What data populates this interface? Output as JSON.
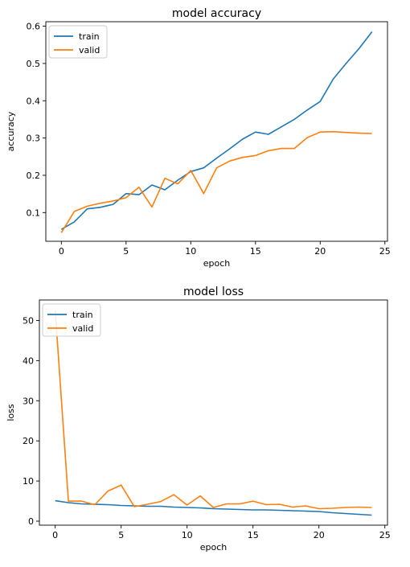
{
  "colors": {
    "train": "#1f77b4",
    "valid": "#ff7f0e"
  },
  "chart_data": [
    {
      "type": "line",
      "title": "model accuracy",
      "xlabel": "epoch",
      "ylabel": "accuracy",
      "xlim": [
        -1.2,
        25.2
      ],
      "ylim": [
        0.023,
        0.612
      ],
      "xticks": [
        0,
        5,
        10,
        15,
        20,
        25
      ],
      "yticks": [
        0.1,
        0.2,
        0.3,
        0.4,
        0.5,
        0.6
      ],
      "ytick_labels": [
        "0.1",
        "0.2",
        "0.3",
        "0.4",
        "0.5",
        "0.6"
      ],
      "legend": "upper left",
      "x": [
        0,
        1,
        2,
        3,
        4,
        5,
        6,
        7,
        8,
        9,
        10,
        11,
        12,
        13,
        14,
        15,
        16,
        17,
        18,
        19,
        20,
        21,
        22,
        23,
        24
      ],
      "series": [
        {
          "name": "train",
          "values": [
            0.055,
            0.075,
            0.11,
            0.114,
            0.122,
            0.151,
            0.148,
            0.174,
            0.161,
            0.187,
            0.21,
            0.22,
            0.246,
            0.271,
            0.297,
            0.316,
            0.31,
            0.33,
            0.35,
            0.375,
            0.398,
            0.458,
            0.5,
            0.54,
            0.585
          ]
        },
        {
          "name": "valid",
          "values": [
            0.046,
            0.103,
            0.117,
            0.125,
            0.131,
            0.14,
            0.168,
            0.115,
            0.192,
            0.177,
            0.213,
            0.151,
            0.22,
            0.238,
            0.248,
            0.253,
            0.266,
            0.272,
            0.272,
            0.301,
            0.316,
            0.317,
            0.315,
            0.313,
            0.312
          ]
        }
      ]
    },
    {
      "type": "line",
      "title": "model loss",
      "xlabel": "epoch",
      "ylabel": "loss",
      "xlim": [
        -1.2,
        25.2
      ],
      "ylim": [
        -1.0,
        55.1
      ],
      "xticks": [
        0,
        5,
        10,
        15,
        20,
        25
      ],
      "yticks": [
        0,
        10,
        20,
        30,
        40,
        50
      ],
      "ytick_labels": [
        "0",
        "10",
        "20",
        "30",
        "40",
        "50"
      ],
      "legend": "upper left",
      "x": [
        0,
        1,
        2,
        3,
        4,
        5,
        6,
        7,
        8,
        9,
        10,
        11,
        12,
        13,
        14,
        15,
        16,
        17,
        18,
        19,
        20,
        21,
        22,
        23,
        24
      ],
      "series": [
        {
          "name": "train",
          "values": [
            5.1,
            4.6,
            4.3,
            4.2,
            4.1,
            3.9,
            3.8,
            3.7,
            3.7,
            3.5,
            3.4,
            3.3,
            3.1,
            3.0,
            2.9,
            2.8,
            2.8,
            2.7,
            2.6,
            2.5,
            2.4,
            2.1,
            1.9,
            1.7,
            1.5
          ]
        },
        {
          "name": "valid",
          "values": [
            52.5,
            5.0,
            5.0,
            4.1,
            7.5,
            9.0,
            3.6,
            4.2,
            4.9,
            6.6,
            4.0,
            6.3,
            3.4,
            4.3,
            4.3,
            5.0,
            4.1,
            4.2,
            3.5,
            3.8,
            3.1,
            3.2,
            3.4,
            3.5,
            3.4
          ]
        }
      ]
    }
  ]
}
